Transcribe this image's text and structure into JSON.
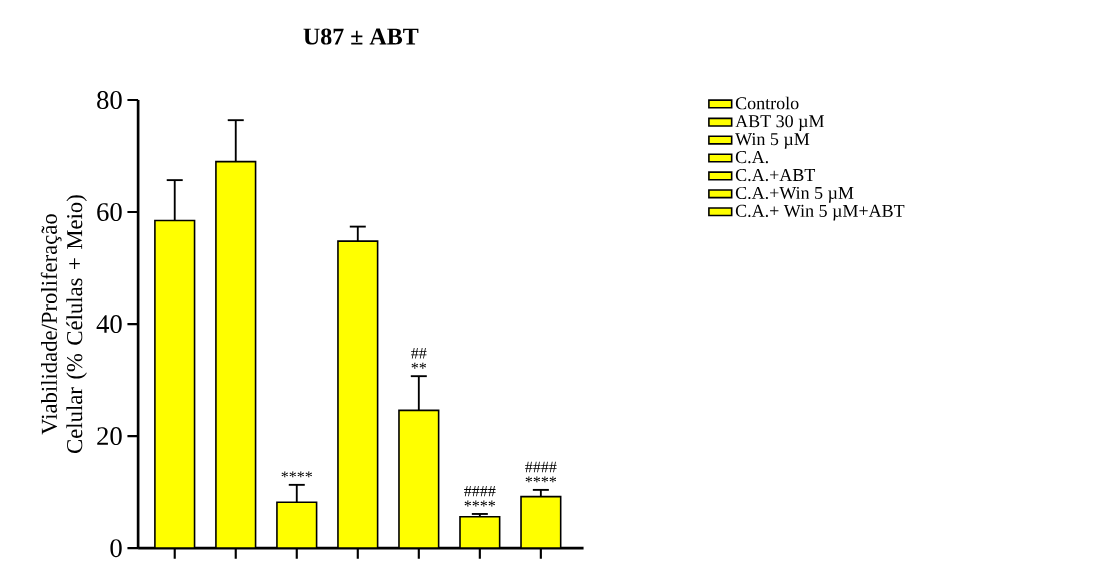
{
  "chart_data": {
    "type": "bar",
    "title": "U87 ± ABT",
    "ylabel": "Viabilidade/Proliferação Celular (% Células + Meio)",
    "categories": [
      null,
      null,
      null,
      null,
      null,
      null,
      null
    ],
    "series": [
      {
        "name": "Controlo",
        "color": "#ffff00",
        "values": [
          58.5,
          null,
          null,
          null,
          null,
          null,
          null
        ],
        "errors": [
          7.2,
          null,
          null,
          null,
          null,
          null,
          null
        ],
        "value_labels": [
          null,
          null,
          null,
          null,
          null,
          null,
          null
        ]
      },
      {
        "name": "ABT 30 µM",
        "color": "#ffff00",
        "values": [
          null,
          69,
          null,
          null,
          null,
          null,
          null
        ],
        "errors": [
          null,
          7.4,
          null,
          null,
          null,
          null,
          null
        ],
        "value_labels": [
          null,
          null,
          null,
          null,
          null,
          null,
          null
        ]
      },
      {
        "name": "Win 5 µM",
        "color": "#ffff00",
        "values": [
          null,
          null,
          8.2,
          null,
          null,
          null,
          null
        ],
        "errors": [
          null,
          null,
          3.1,
          null,
          null,
          null,
          null
        ],
        "value_labels": [
          null,
          null,
          "****",
          null,
          null,
          null,
          null
        ]
      },
      {
        "name": "C.A.",
        "color": "#ffff00",
        "values": [
          null,
          null,
          null,
          54.8,
          null,
          null,
          null
        ],
        "errors": [
          null,
          null,
          null,
          2.6,
          null,
          null,
          null
        ],
        "value_labels": [
          null,
          null,
          null,
          null,
          null,
          null,
          null
        ]
      },
      {
        "name": "C.A.+ABT",
        "color": "#ffff00",
        "values": [
          null,
          null,
          null,
          null,
          24.6,
          null,
          null
        ],
        "errors": [
          null,
          null,
          null,
          null,
          6.1,
          null,
          null
        ],
        "value_labels": [
          null,
          null,
          null,
          null,
          "## **",
          null,
          null
        ]
      },
      {
        "name": "C.A.+Win 5 µM",
        "color": "#ffff00",
        "values": [
          null,
          null,
          null,
          null,
          null,
          5.6,
          null
        ],
        "errors": [
          null,
          null,
          null,
          null,
          null,
          0.5,
          null
        ],
        "value_labels": [
          null,
          null,
          null,
          null,
          null,
          "#### ****",
          null
        ]
      },
      {
        "name": "C.A.+ Win 5 µM+ABT",
        "color": "#ffff00",
        "values": [
          null,
          null,
          null,
          null,
          null,
          null,
          9.2
        ],
        "errors": [
          null,
          null,
          null,
          null,
          null,
          null,
          1.2
        ],
        "value_labels": [
          null,
          null,
          null,
          null,
          null,
          null,
          "#### ****"
        ]
      }
    ],
    "ylim": [
      0,
      80
    ],
    "yticks": [
      0,
      20,
      40,
      60,
      80
    ],
    "legend": "top right",
    "tick_labels": "y",
    "grid": false
  }
}
